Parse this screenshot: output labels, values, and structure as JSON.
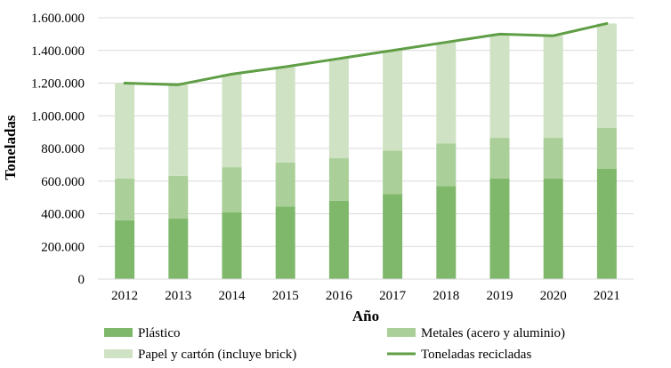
{
  "chart_data": {
    "type": "bar",
    "stacked": true,
    "xlabel": "Año",
    "ylabel": "Toneladas",
    "ylim": [
      0,
      1600000
    ],
    "yticks": [
      0,
      200000,
      400000,
      600000,
      800000,
      1000000,
      1200000,
      1400000,
      1600000
    ],
    "ytick_labels": [
      "0",
      "200.000",
      "400.000",
      "600.000",
      "800.000",
      "1.000.000",
      "1.200.000",
      "1.400.000",
      "1.600.000"
    ],
    "categories": [
      "2012",
      "2013",
      "2014",
      "2015",
      "2016",
      "2017",
      "2018",
      "2019",
      "2020",
      "2021"
    ],
    "grid": true,
    "legend_placement": "bottom",
    "series": [
      {
        "name": "Plástico",
        "kind": "bar",
        "color": "#7fb86b",
        "values": [
          360000,
          370000,
          410000,
          445000,
          480000,
          520000,
          570000,
          615000,
          615000,
          675000
        ]
      },
      {
        "name": "Metales (acero y aluminio)",
        "kind": "bar",
        "color": "#aacf98",
        "values": [
          255000,
          262000,
          275000,
          268000,
          260000,
          267000,
          260000,
          250000,
          250000,
          250000
        ]
      },
      {
        "name": "Papel y cartón (incluye brick)",
        "kind": "bar",
        "color": "#cfe3c4",
        "values": [
          585000,
          558000,
          570000,
          587000,
          610000,
          613000,
          620000,
          635000,
          625000,
          640000
        ]
      },
      {
        "name": "Toneladas recicladas",
        "kind": "line",
        "color": "#5f9e45",
        "values": [
          1200000,
          1190000,
          1255000,
          1300000,
          1350000,
          1400000,
          1450000,
          1500000,
          1490000,
          1565000
        ]
      }
    ]
  }
}
